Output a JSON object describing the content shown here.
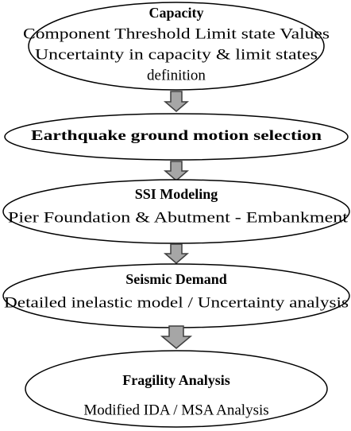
{
  "nodes": [
    {
      "title": "Capacity",
      "lines": [
        "Component Threshold Limit state Values",
        "Uncertainty in capacity & limit states",
        "definition"
      ]
    },
    {
      "title": "Earthquake ground motion selection",
      "lines": []
    },
    {
      "title": "SSI Modeling",
      "lines": [
        "Pier Foundation & Abutment - Embankment"
      ]
    },
    {
      "title": "Seismic Demand",
      "lines": [
        "Detailed inelastic model / Uncertainty analysis"
      ]
    },
    {
      "title": "Fragility Analysis",
      "lines": [
        "Modified IDA / MSA Analysis"
      ]
    }
  ]
}
